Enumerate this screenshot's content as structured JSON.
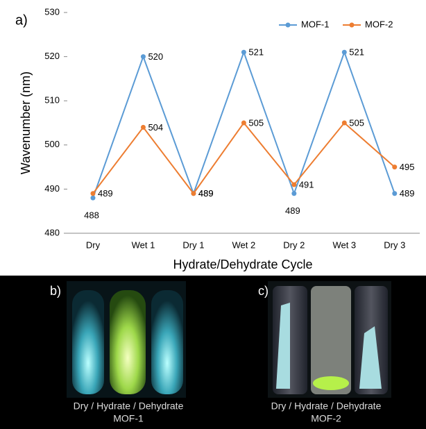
{
  "chart_data": {
    "type": "line",
    "annotation": "a)",
    "y_label": "Wavenumber (nm)",
    "x_label": "Hydrate/Dehydrate Cycle",
    "categories": [
      "Dry",
      "Wet 1",
      "Dry 1",
      "Wet 2",
      "Dry 2",
      "Wet 3",
      "Dry 3"
    ],
    "series": [
      {
        "name": "MOF-1",
        "color": "#5b9bd5",
        "values": [
          488,
          520,
          489,
          521,
          489,
          521,
          489
        ]
      },
      {
        "name": "MOF-2",
        "color": "#ed7d31",
        "values": [
          489,
          504,
          489,
          505,
          491,
          505,
          495
        ]
      }
    ],
    "ylim": [
      480,
      530
    ],
    "yticks": [
      480,
      490,
      500,
      510,
      520,
      530
    ],
    "grid": false,
    "legend": "top-right"
  },
  "figure_panels": [
    {
      "label": "b)",
      "caption": [
        "Dry / Hydrate / Dehydrate",
        "MOF-1"
      ]
    },
    {
      "label": "c)",
      "caption": [
        "Dry / Hydrate / Dehydrate",
        "MOF-2"
      ]
    }
  ]
}
